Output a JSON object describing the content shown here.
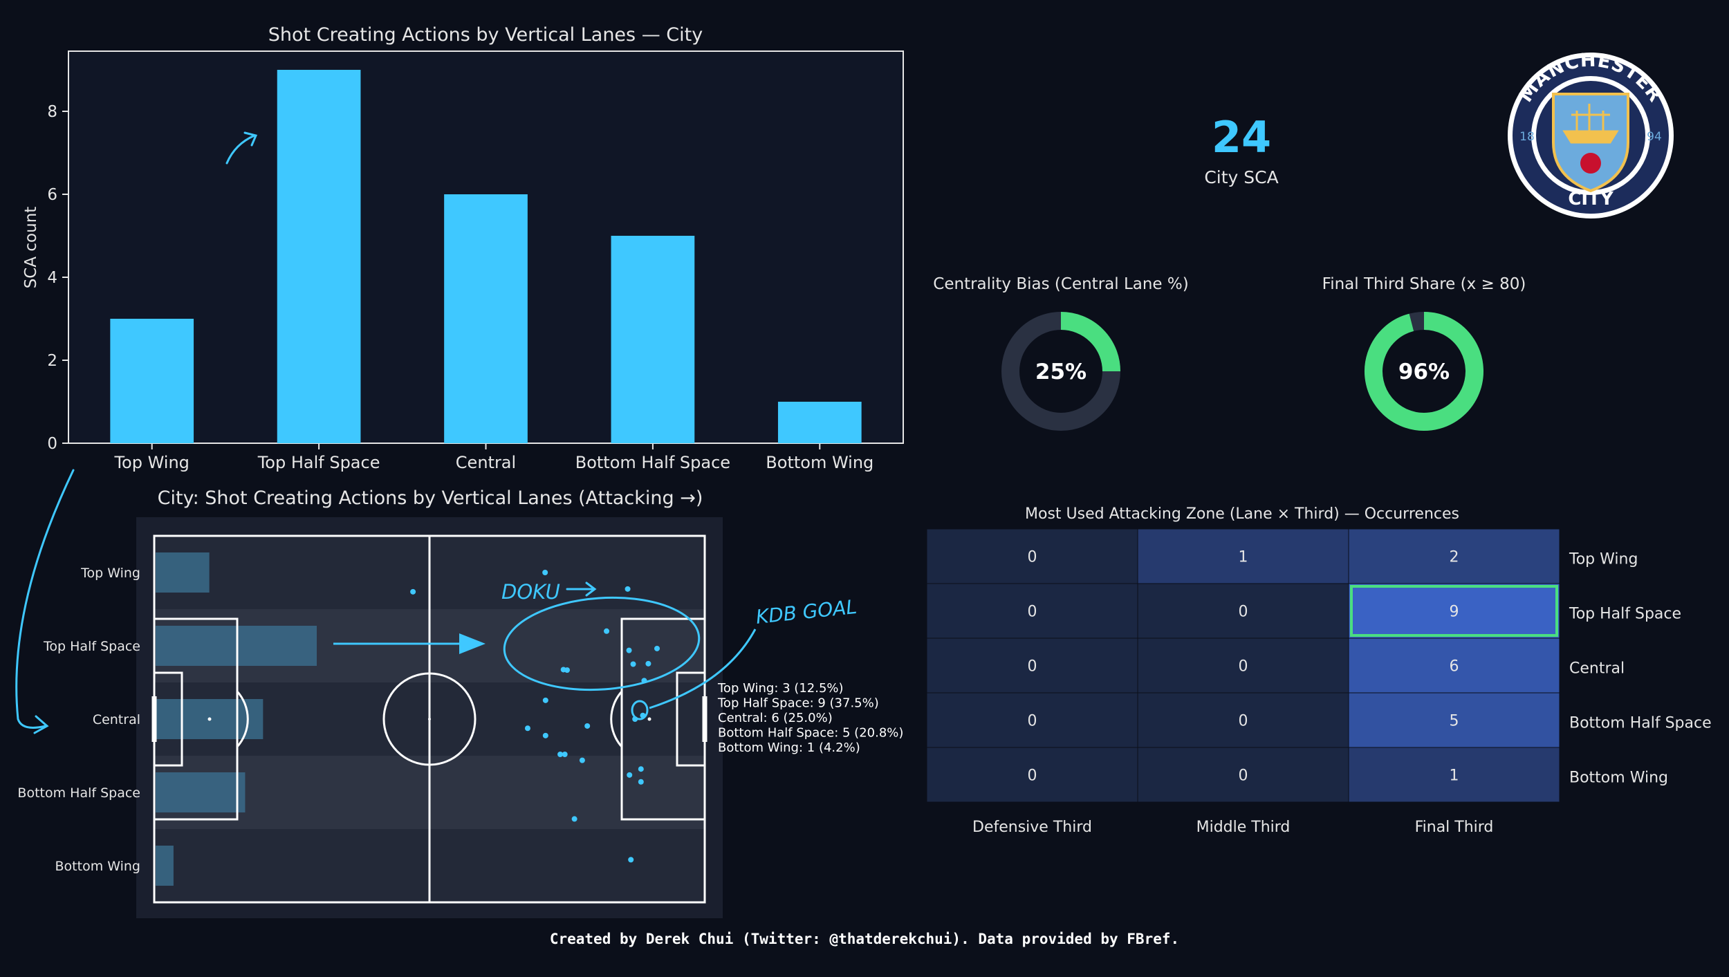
{
  "colors": {
    "background": "#0b0f1a",
    "panel": "#101626",
    "accent": "#3fc8ff",
    "ring_fill": "#4ade80",
    "ring_track": "#2a3142",
    "heat_low": "#1b2743",
    "heat_mid": "#233a6e",
    "heat_high": "#3a62c4",
    "highlight": "#4ade80",
    "annotation": "#3fc8ff"
  },
  "bar_chart": {
    "title": "Shot Creating Actions by Vertical Lanes — City",
    "ylabel": "SCA count",
    "yticks": [
      "0",
      "2",
      "4",
      "6",
      "8"
    ]
  },
  "kpi": {
    "value": "24",
    "label": "City SCA"
  },
  "logo": {
    "text_top": "MANCHESTER",
    "text_bottom": "CITY",
    "year_left": "18",
    "year_right": "94"
  },
  "ring_centrality": {
    "title": "Centrality Bias (Central Lane %)",
    "label": "25%"
  },
  "ring_final_third": {
    "title": "Final Third Share (x ≥ 80)",
    "label": "96%"
  },
  "pitch": {
    "title": "City: Shot Creating Actions by Vertical Lanes (Attacking →)",
    "lane_labels": [
      "Top Wing",
      "Top Half Space",
      "Central",
      "Bottom Half Space",
      "Bottom Wing"
    ],
    "summary": [
      "Top Wing: 3 (12.5%)",
      "Top Half Space: 9 (37.5%)",
      "Central: 6 (25.0%)",
      "Bottom Half Space: 5 (20.8%)",
      "Bottom Wing: 1 (4.2%)"
    ],
    "annotations": {
      "doku": "DOKU",
      "kdb": "KDB GOAL"
    }
  },
  "heatmap": {
    "title": "Most Used Attacking Zone (Lane × Third) — Occurrences"
  },
  "credit": "Created by Derek Chui (Twitter: @thatderekchui). Data provided by FBref.",
  "chart_data": [
    {
      "type": "bar",
      "title": "Shot Creating Actions by Vertical Lanes — City",
      "xlabel": "",
      "ylabel": "SCA count",
      "categories": [
        "Top Wing",
        "Top Half Space",
        "Central",
        "Bottom Half Space",
        "Bottom Wing"
      ],
      "values": [
        3,
        9,
        6,
        5,
        1
      ],
      "ylim": [
        0,
        9.45
      ],
      "grid": false
    },
    {
      "type": "pie",
      "title": "Centrality Bias (Central Lane %)",
      "values": [
        25,
        75
      ],
      "center_label": "25%"
    },
    {
      "type": "pie",
      "title": "Final Third Share (x ≥ 80)",
      "values": [
        96,
        4
      ],
      "center_label": "96%"
    },
    {
      "type": "heatmap",
      "title": "Most Used Attacking Zone (Lane × Third) — Occurrences",
      "x_categories": [
        "Defensive Third",
        "Middle Third",
        "Final Third"
      ],
      "y_categories": [
        "Top Wing",
        "Top Half Space",
        "Central",
        "Bottom Half Space",
        "Bottom Wing"
      ],
      "values": [
        [
          0,
          1,
          2
        ],
        [
          0,
          0,
          9
        ],
        [
          0,
          0,
          6
        ],
        [
          0,
          0,
          5
        ],
        [
          0,
          0,
          1
        ]
      ],
      "highlight": {
        "lane": "Top Half Space",
        "third": "Final Third"
      }
    },
    {
      "type": "scatter",
      "title": "City: Shot Creating Actions by Vertical Lanes (Attacking →)",
      "xlim": [
        0,
        120
      ],
      "ylim": [
        0,
        80
      ],
      "lane_counts": [
        3,
        9,
        6,
        5,
        1
      ],
      "lane_max": 9,
      "points": [
        [
          85.2,
          72.0
        ],
        [
          56.4,
          67.8
        ],
        [
          103.2,
          68.4
        ],
        [
          98.6,
          59.2
        ],
        [
          104.4,
          52.0
        ],
        [
          109.6,
          55.4
        ],
        [
          103.5,
          55.0
        ],
        [
          107.7,
          52.1
        ],
        [
          106.8,
          48.4
        ],
        [
          89.2,
          50.8
        ],
        [
          90.0,
          50.7
        ],
        [
          85.3,
          44.1
        ],
        [
          81.4,
          38.0
        ],
        [
          94.4,
          38.5
        ],
        [
          104.8,
          40.0
        ],
        [
          106.5,
          40.8
        ],
        [
          85.3,
          36.4
        ],
        [
          88.5,
          32.3
        ],
        [
          89.5,
          32.3
        ],
        [
          93.3,
          31.0
        ],
        [
          106.1,
          29.1
        ],
        [
          106.1,
          26.3
        ],
        [
          103.6,
          27.8
        ],
        [
          91.6,
          18.2
        ],
        [
          103.9,
          9.3
        ]
      ]
    }
  ]
}
